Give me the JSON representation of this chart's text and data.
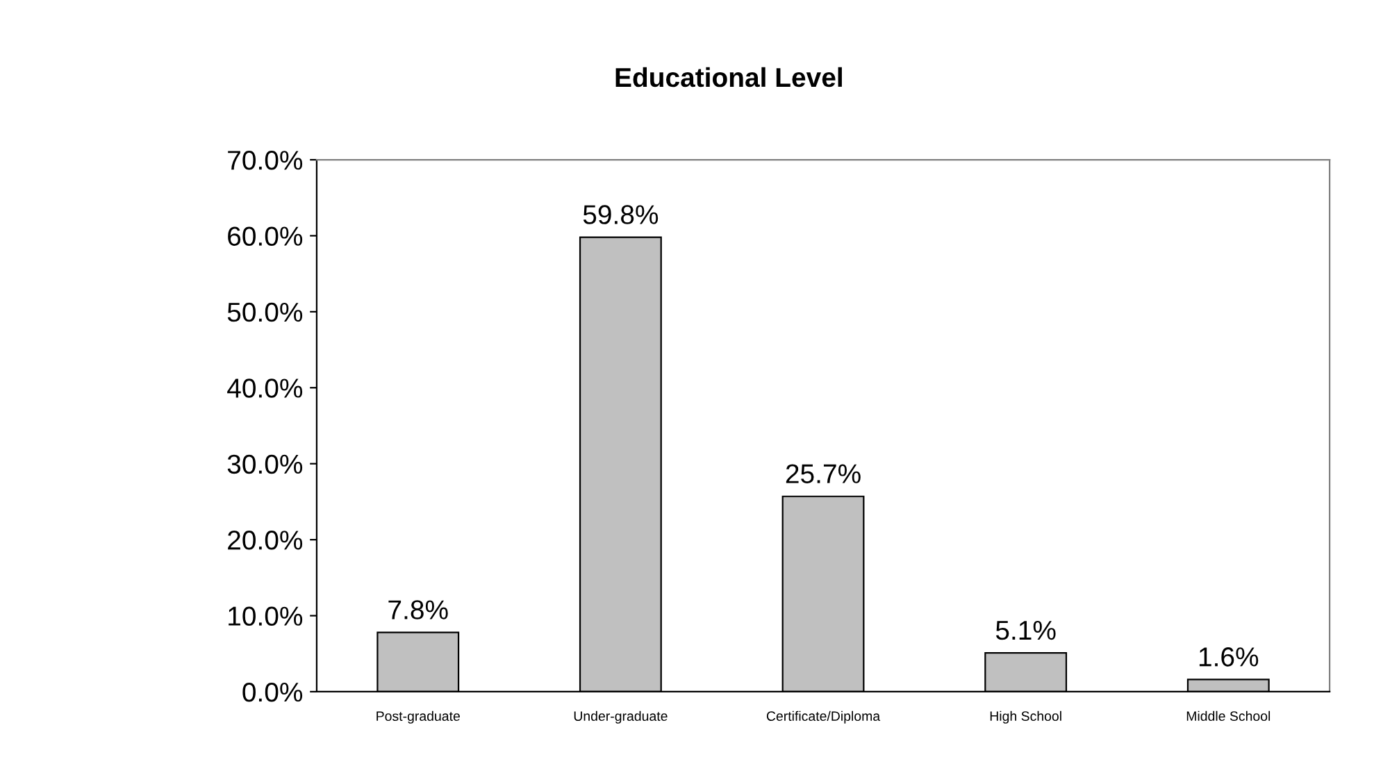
{
  "chart_data": {
    "type": "bar",
    "title": "Educational Level",
    "categories": [
      "Post-graduate",
      "Under-graduate",
      "Certificate/Diploma",
      "High School",
      "Middle School"
    ],
    "values": [
      7.8,
      59.8,
      25.7,
      5.1,
      1.6
    ],
    "value_labels": [
      "7.8%",
      "59.8%",
      "25.7%",
      "5.1%",
      "1.6%"
    ],
    "color": "#c0c0c0",
    "ylim": [
      0,
      70
    ],
    "yticks": [
      {
        "value": 0,
        "label": "0.0%"
      },
      {
        "value": 10,
        "label": "10.0%"
      },
      {
        "value": 20,
        "label": "20.0%"
      },
      {
        "value": 30,
        "label": "30.0%"
      },
      {
        "value": 40,
        "label": "40.0%"
      },
      {
        "value": 50,
        "label": "50.0%"
      },
      {
        "value": 60,
        "label": "60.0%"
      },
      {
        "value": 70,
        "label": "70.0%"
      }
    ],
    "grid": false,
    "legend": false
  }
}
